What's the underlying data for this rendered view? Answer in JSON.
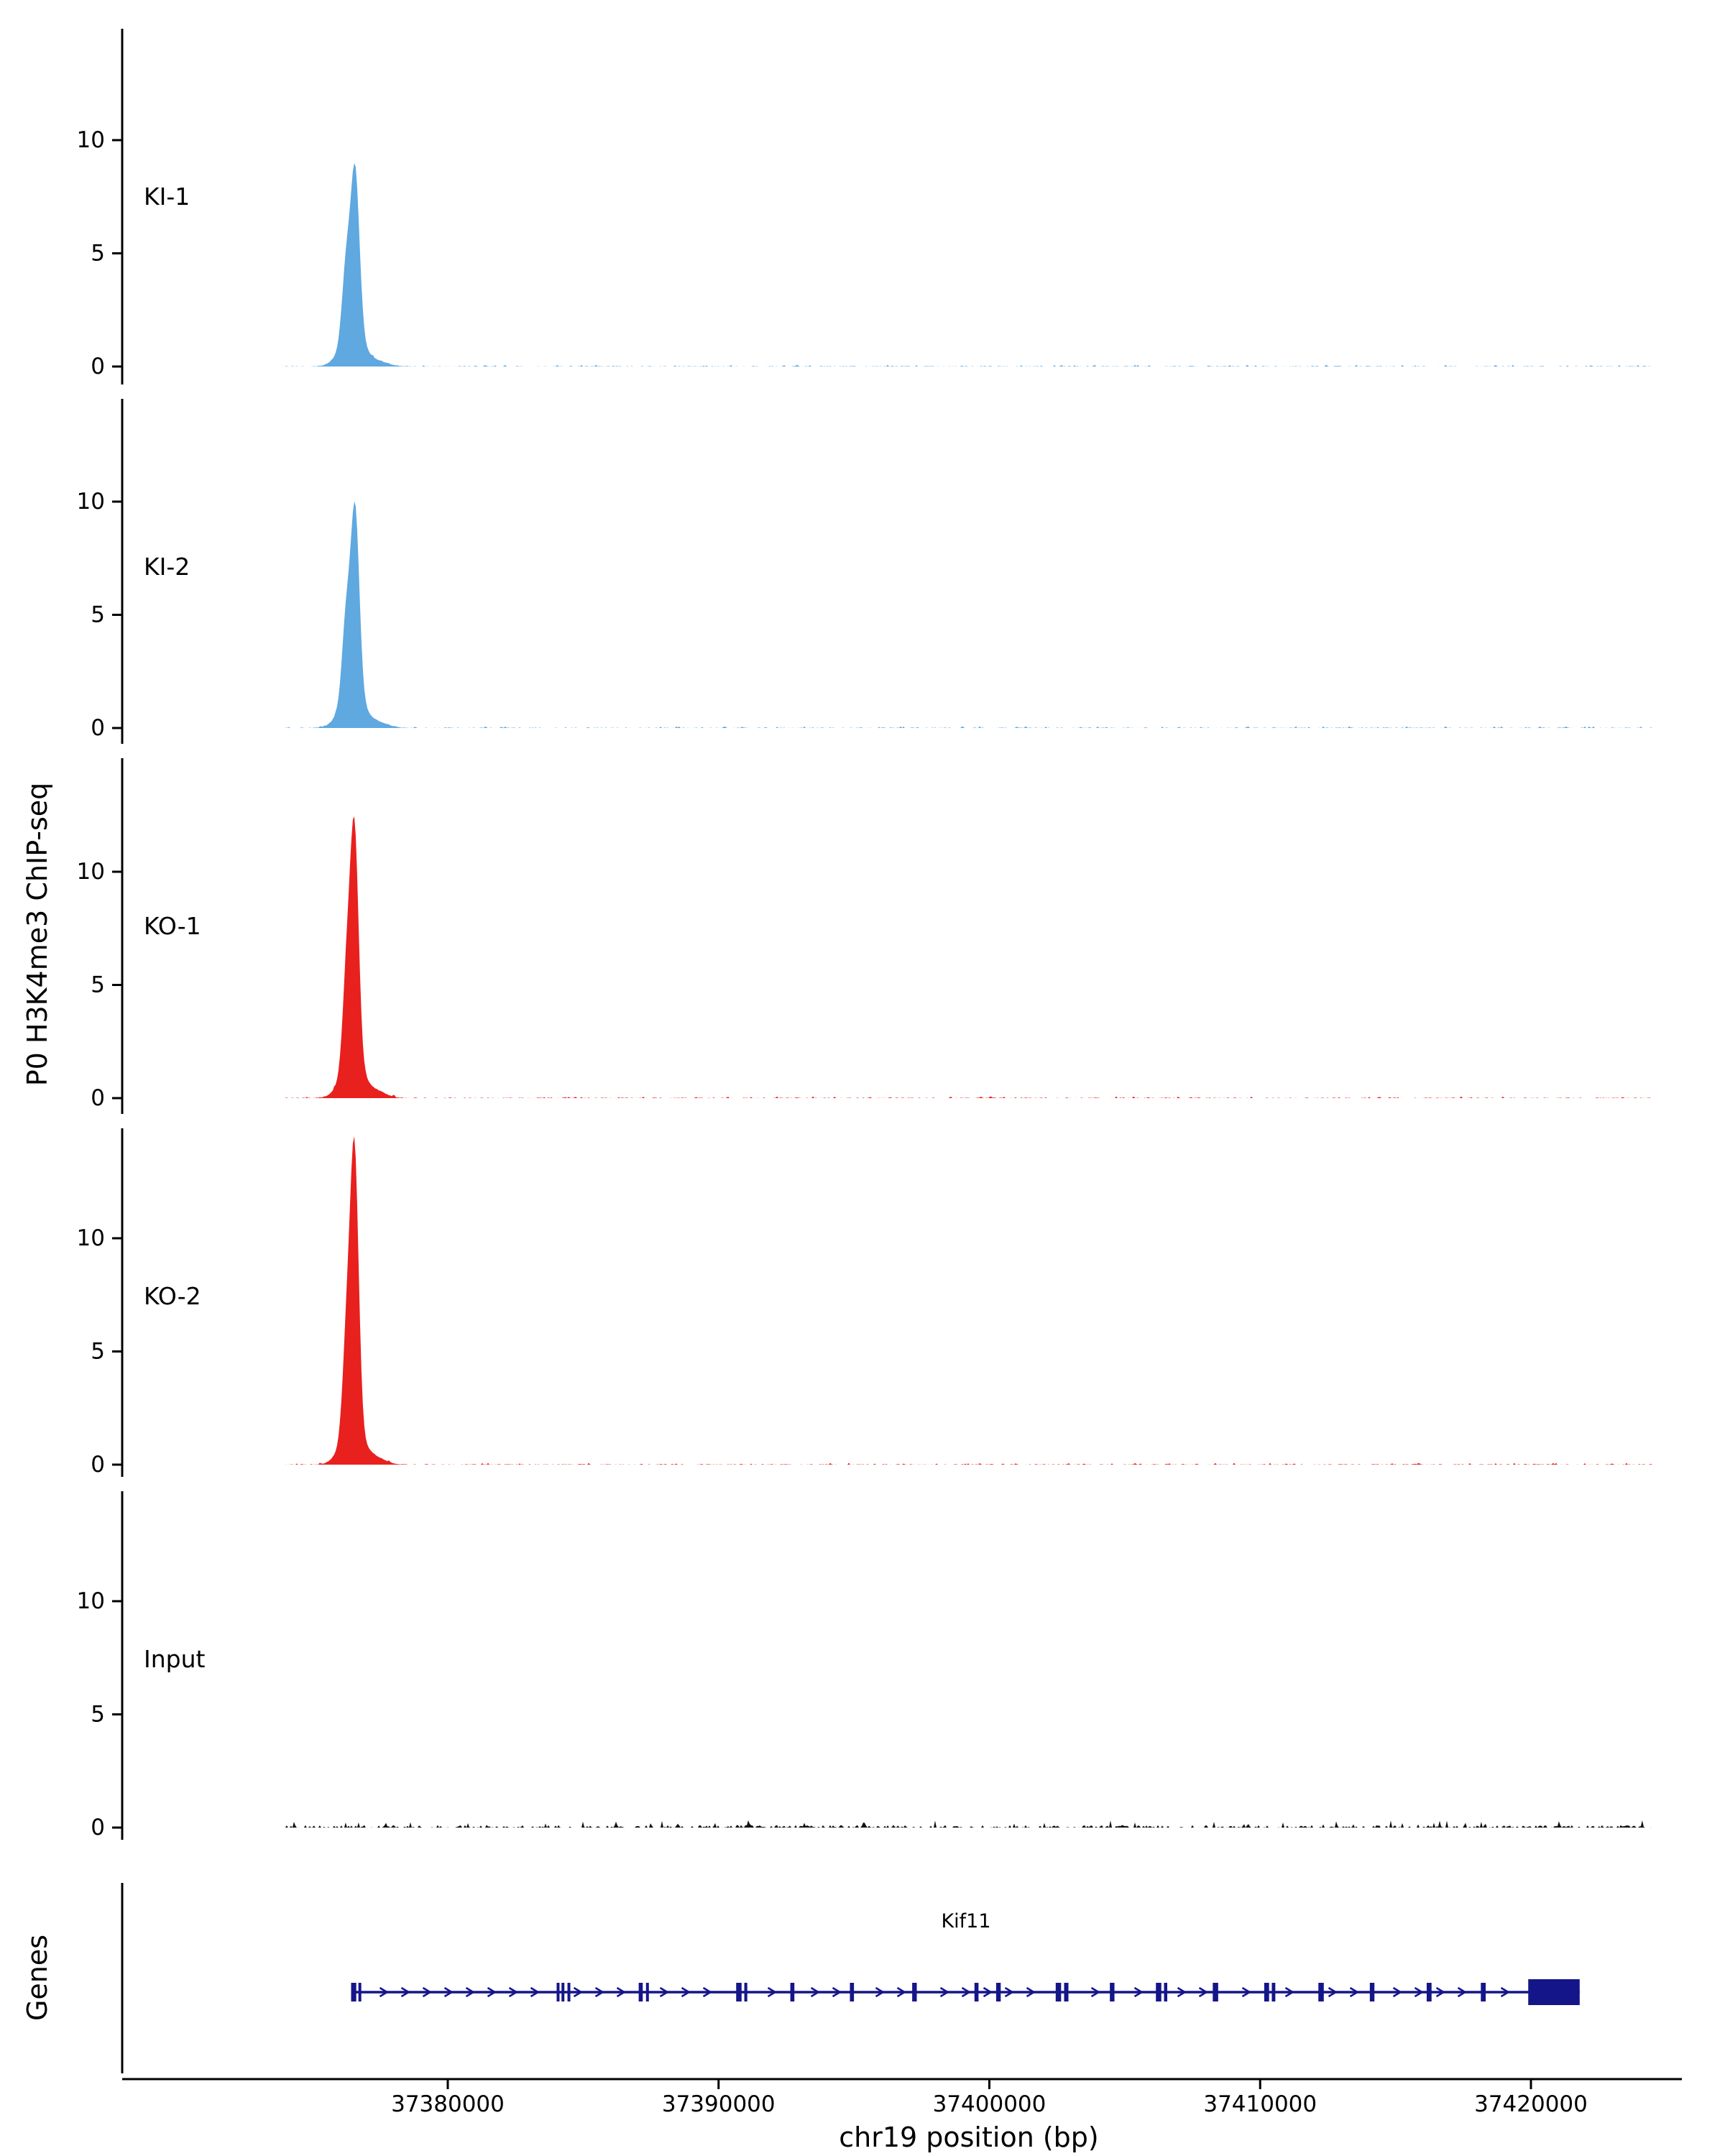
{
  "figure": {
    "y_axis_label": "P0 H3K4me3 ChIP-seq",
    "genes_axis_label": "Genes",
    "x_axis_label": "chr19 position (bp)",
    "gene_label": "Kif11"
  },
  "chart_data": {
    "type": "area",
    "title": "",
    "xlabel": "chr19 position (bp)",
    "ylabel": "P0 H3K4me3 ChIP-seq",
    "x_range_bp": [
      37374000,
      37424500
    ],
    "x_ticks": [
      {
        "bp": 37380000,
        "label": "37380000"
      },
      {
        "bp": 37390000,
        "label": "37390000"
      },
      {
        "bp": 37400000,
        "label": "37400000"
      },
      {
        "bp": 37410000,
        "label": "37410000"
      },
      {
        "bp": 37420000,
        "label": "37420000"
      }
    ],
    "y_ticks": [
      0,
      5,
      10
    ],
    "legend_position": "none",
    "grid": false,
    "tracks": [
      {
        "name": "KI-1",
        "color": "#5fa8e0",
        "peak_apex_value": 8.7,
        "peak_center_bp": 37376580,
        "noise": 0.05,
        "peak_components": [
          {
            "c": 37376250,
            "s": 150,
            "a": 3.2
          },
          {
            "c": 37376580,
            "s": 160,
            "a": 7.2
          },
          {
            "c": 37376480,
            "s": 420,
            "a": 1.5
          },
          {
            "c": 37377500,
            "s": 350,
            "a": 0.18
          }
        ]
      },
      {
        "name": "KI-2",
        "color": "#5fa8e0",
        "peak_apex_value": 9.6,
        "peak_center_bp": 37376580,
        "noise": 0.05,
        "peak_components": [
          {
            "c": 37376250,
            "s": 150,
            "a": 3.6
          },
          {
            "c": 37376580,
            "s": 155,
            "a": 8.1
          },
          {
            "c": 37376480,
            "s": 420,
            "a": 1.6
          },
          {
            "c": 37377500,
            "s": 350,
            "a": 0.2
          }
        ]
      },
      {
        "name": "KO-1",
        "color": "#e8201e",
        "peak_apex_value": 11.5,
        "peak_center_bp": 37376560,
        "noise": 0.05,
        "peak_components": [
          {
            "c": 37376280,
            "s": 150,
            "a": 4.4
          },
          {
            "c": 37376560,
            "s": 150,
            "a": 9.9
          },
          {
            "c": 37376480,
            "s": 400,
            "a": 1.7
          },
          {
            "c": 37377400,
            "s": 350,
            "a": 0.25
          }
        ]
      },
      {
        "name": "KO-2",
        "color": "#e8201e",
        "peak_apex_value": 13.5,
        "peak_center_bp": 37376560,
        "noise": 0.05,
        "peak_components": [
          {
            "c": 37376280,
            "s": 150,
            "a": 4.6
          },
          {
            "c": 37376560,
            "s": 150,
            "a": 11.9
          },
          {
            "c": 37376480,
            "s": 400,
            "a": 1.7
          },
          {
            "c": 37377400,
            "s": 350,
            "a": 0.25
          }
        ]
      },
      {
        "name": "Input",
        "color": "#111111",
        "peak_apex_value": 0.3,
        "peak_center_bp": null,
        "noise": 0.2,
        "peak_components": []
      }
    ],
    "gene": {
      "name": "Kif11",
      "chromosome": "chr19",
      "strand": "+",
      "start_bp": 37376430,
      "end_bp": 37421800,
      "color": "#15158a",
      "exons_bp": [
        [
          37376430,
          37376620
        ],
        [
          37376700,
          37376780
        ],
        [
          37384020,
          37384120
        ],
        [
          37384200,
          37384300
        ],
        [
          37384420,
          37384520
        ],
        [
          37387050,
          37387200
        ],
        [
          37387320,
          37387420
        ],
        [
          37390650,
          37390850
        ],
        [
          37390950,
          37391060
        ],
        [
          37392650,
          37392800
        ],
        [
          37394850,
          37395000
        ],
        [
          37397150,
          37397320
        ],
        [
          37399450,
          37399600
        ],
        [
          37400250,
          37400420
        ],
        [
          37402450,
          37402650
        ],
        [
          37402760,
          37402920
        ],
        [
          37404450,
          37404620
        ],
        [
          37406150,
          37406350
        ],
        [
          37406450,
          37406570
        ],
        [
          37408250,
          37408450
        ],
        [
          37410150,
          37410330
        ],
        [
          37410430,
          37410560
        ],
        [
          37412150,
          37412350
        ],
        [
          37414050,
          37414220
        ],
        [
          37416150,
          37416330
        ],
        [
          37418150,
          37418330
        ],
        [
          37419900,
          37421800
        ]
      ]
    }
  }
}
